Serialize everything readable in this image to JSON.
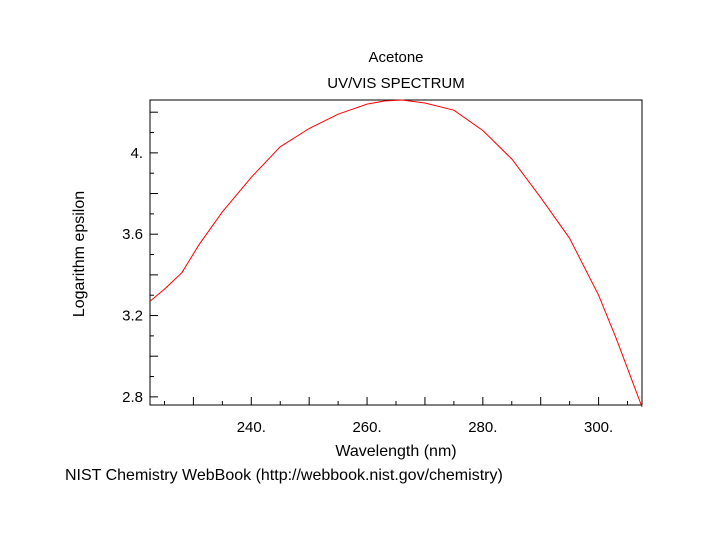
{
  "chart_data": {
    "type": "line",
    "title": "Acetone",
    "subtitle": "UV/VIS SPECTRUM",
    "xlabel": "Wavelength (nm)",
    "ylabel": "Logarithm epsilon",
    "footer": "NIST Chemistry WebBook (http://webbook.nist.gov/chemistry)",
    "xlim": [
      222.5,
      307.5
    ],
    "ylim": [
      2.76,
      4.26
    ],
    "xticks": [
      240,
      260,
      280,
      300
    ],
    "xtick_labels": [
      "240.",
      "260.",
      "280.",
      "300."
    ],
    "yticks": [
      2.8,
      3.2,
      3.6,
      4.0
    ],
    "ytick_labels": [
      "2.8",
      "3.2",
      "3.6",
      "4."
    ],
    "grid": false,
    "line_color": "#ff0000",
    "series": [
      {
        "x": [
          222.5,
          225,
          228,
          231,
          235,
          240,
          245,
          250,
          255,
          260,
          263,
          266,
          270,
          275,
          280,
          285,
          290,
          295,
          300,
          303,
          305,
          307.5
        ],
        "y": [
          3.27,
          3.33,
          3.41,
          3.55,
          3.71,
          3.88,
          4.03,
          4.12,
          4.19,
          4.24,
          4.255,
          4.26,
          4.245,
          4.21,
          4.11,
          3.97,
          3.78,
          3.58,
          3.3,
          3.09,
          2.94,
          2.75
        ]
      }
    ]
  }
}
